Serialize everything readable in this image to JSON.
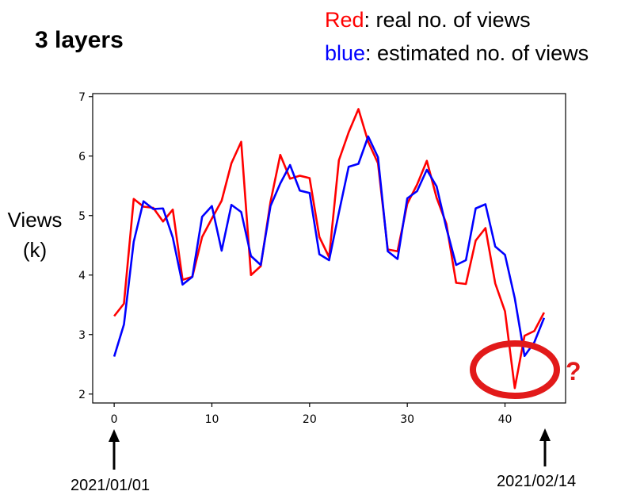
{
  "title": "3 layers",
  "legend": {
    "red_word": "Red",
    "red_text": ": real no. of views",
    "blue_word": "blue",
    "blue_text": ":  estimated no. of views"
  },
  "ylabel_line1": "Views",
  "ylabel_line2": "(k)",
  "annotations": {
    "start_date": "2021/01/01",
    "end_date": "2021/02/14",
    "question_mark": "?"
  },
  "colors": {
    "red": "#ff0000",
    "blue": "#0000ff",
    "circle": "#e21a1a"
  },
  "chart_data": {
    "type": "line",
    "title": "",
    "xlabel": "",
    "ylabel": "Views (k)",
    "xlim": [
      -2.2,
      46.2
    ],
    "ylim": [
      1.85,
      7.05
    ],
    "xticks": [
      0,
      10,
      20,
      30,
      40
    ],
    "yticks": [
      2,
      3,
      4,
      5,
      6,
      7
    ],
    "grid": false,
    "x": [
      0,
      1,
      2,
      3,
      4,
      5,
      6,
      7,
      8,
      9,
      10,
      11,
      12,
      13,
      14,
      15,
      16,
      17,
      18,
      19,
      20,
      21,
      22,
      23,
      24,
      25,
      26,
      27,
      28,
      29,
      30,
      31,
      32,
      33,
      34,
      35,
      36,
      37,
      38,
      39,
      40,
      41,
      42,
      43,
      44
    ],
    "series": [
      {
        "name": "real no. of views",
        "color": "red",
        "values": [
          3.31,
          3.52,
          5.28,
          5.15,
          5.13,
          4.9,
          5.1,
          3.92,
          3.97,
          4.64,
          4.95,
          5.25,
          5.88,
          6.24,
          4.0,
          4.15,
          5.23,
          6.02,
          5.62,
          5.67,
          5.63,
          4.64,
          4.3,
          5.93,
          6.4,
          6.79,
          6.24,
          5.88,
          4.43,
          4.4,
          5.2,
          5.52,
          5.92,
          5.3,
          4.86,
          3.87,
          3.85,
          4.58,
          4.79,
          3.86,
          3.39,
          2.1,
          2.98,
          3.06,
          3.37
        ]
      },
      {
        "name": "estimated no. of views",
        "color": "blue",
        "values": [
          2.63,
          3.17,
          4.56,
          5.24,
          5.11,
          5.12,
          4.63,
          3.84,
          3.97,
          4.98,
          5.16,
          4.41,
          5.18,
          5.06,
          4.32,
          4.17,
          5.16,
          5.54,
          5.85,
          5.42,
          5.38,
          4.35,
          4.25,
          5.05,
          5.82,
          5.87,
          6.33,
          5.98,
          4.4,
          4.27,
          5.29,
          5.41,
          5.77,
          5.49,
          4.79,
          4.17,
          4.25,
          5.12,
          5.19,
          4.48,
          4.34,
          3.61,
          2.64,
          2.87,
          3.28
        ]
      }
    ]
  }
}
